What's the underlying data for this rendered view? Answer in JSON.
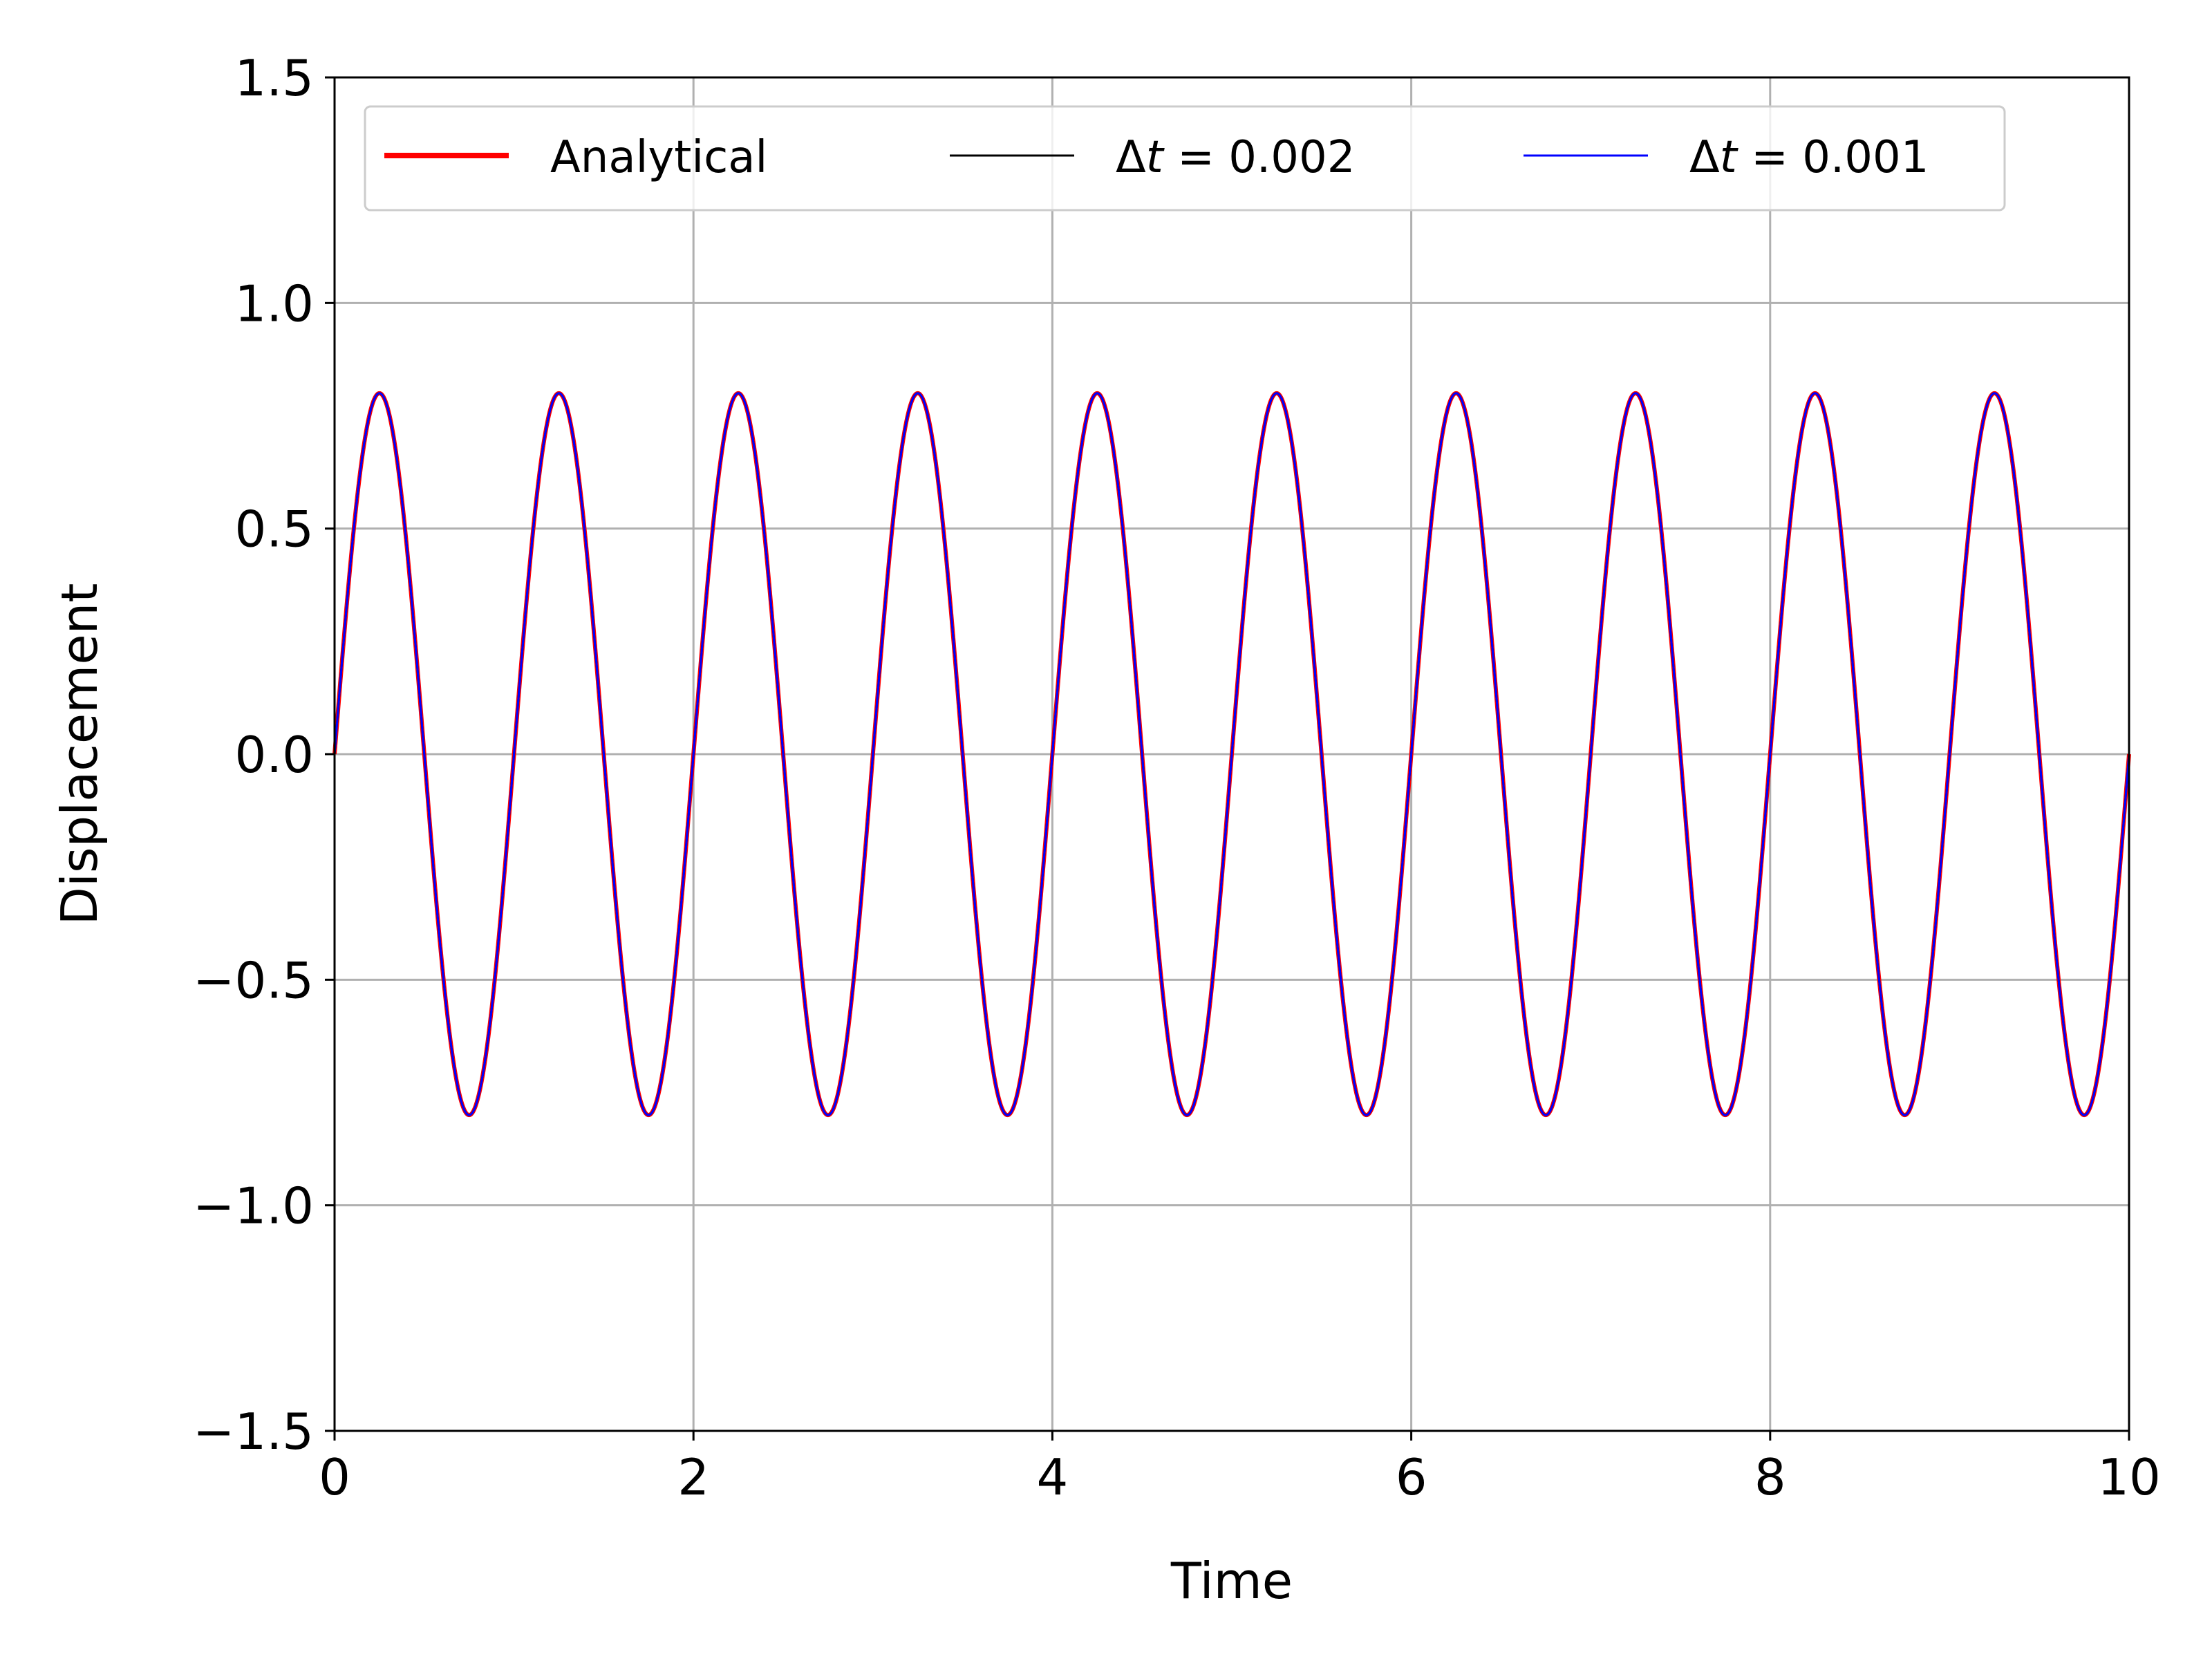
{
  "chart_data": {
    "type": "line",
    "xlabel": "Time",
    "ylabel": "Displacement",
    "xlim": [
      0,
      10
    ],
    "ylim": [
      -1.5,
      1.5
    ],
    "xticks": [
      0,
      2,
      4,
      6,
      8,
      10
    ],
    "yticks": [
      -1.5,
      -1.0,
      -0.5,
      0.0,
      0.5,
      1.0,
      1.5
    ],
    "xtick_labels": [
      "0",
      "2",
      "4",
      "6",
      "8",
      "10"
    ],
    "ytick_labels": [
      "−1.5",
      "−1.0",
      "−0.5",
      "0.0",
      "0.5",
      "1.0",
      "1.5"
    ],
    "grid": true,
    "legend_position": "top",
    "curve": {
      "function": "sine",
      "amplitude": 0.8,
      "period": 1.0,
      "x_range": [
        0,
        10
      ]
    },
    "series": [
      {
        "name": "Analytical",
        "color": "#ff0000",
        "name_parts": []
      },
      {
        "name": "Δt = 0.002",
        "color": "#000000",
        "name_parts": [
          "Δ",
          "t",
          " = 0.002"
        ]
      },
      {
        "name": "Δt = 0.001",
        "color": "#0000ff",
        "name_parts": [
          "Δ",
          "t",
          " = 0.001"
        ]
      }
    ]
  }
}
